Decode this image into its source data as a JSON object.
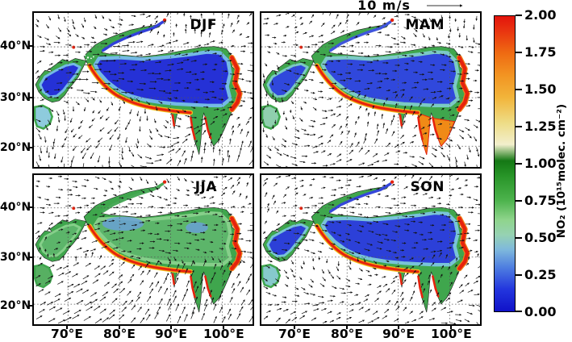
{
  "figure": {
    "wind_reference_label": "10 m/s",
    "panels": [
      {
        "season": "DJF"
      },
      {
        "season": "MAM"
      },
      {
        "season": "JJA"
      },
      {
        "season": "SON"
      }
    ],
    "axes": {
      "lat_ticks": [
        "40°N",
        "30°N",
        "20°N"
      ],
      "lon_ticks": [
        "70°E",
        "80°E",
        "90°E",
        "100°E"
      ]
    },
    "colorbar": {
      "title": "NO₂ (10¹⁵molec. cm⁻²)",
      "ticks": [
        "2.00",
        "1.75",
        "1.50",
        "1.25",
        "1.00",
        "0.75",
        "0.50",
        "0.25",
        "0.00"
      ]
    }
  },
  "chart_data": {
    "type": "heatmap",
    "title": "Seasonal tropospheric NO₂ column over the Tibetan Plateau region with wind vector overlay",
    "panel_grid": "2x2, seasons DJF (top-left), MAM (top-right), JJA (bottom-left), SON (bottom-right)",
    "x_axis": {
      "ticks": [
        "70°E",
        "80°E",
        "90°E",
        "100°E"
      ],
      "range_deg_east": [
        63.3,
        105.8
      ]
    },
    "y_axis": {
      "ticks": [
        "40°N",
        "30°N",
        "20°N"
      ],
      "range_deg_north": [
        16.9,
        46.9
      ]
    },
    "grid": "dotted graticule at 10-degree intervals",
    "wind_overlay": {
      "style": "black arrows",
      "reference_speed": "10 m/s"
    },
    "panels": [
      {
        "season": "DJF",
        "pattern": "Plateau interior deep blue (~0.1-0.3), narrow green fringe, intense red band (>=2.0) along Himalayan southern rim, red hotspots on eastern margin; western lobe blue with green edge; strong westerly arrows over plateau"
      },
      {
        "season": "MAM",
        "pattern": "Interior blue (~0.2-0.4) with broad green fringe (~0.6-1.0); southeastern ranges (Myanmar/Shan) orange-red (~1.5-2.0); red Himalayan rim and eastern hotspots"
      },
      {
        "season": "JJA",
        "pattern": "Plateau mostly green (~0.6-1.0) with small blue patches (~0.3-0.5); red rim persists along southern and eastern edges; long southwest-monsoon arrows in the southern part of the domain"
      },
      {
        "season": "SON",
        "pattern": "Interior blue (~0.2-0.4) with green fringe; red southern rim and eastern-margin hotspots similar to DJF"
      }
    ],
    "colorbar": {
      "label": "NO₂ (10¹⁵molec. cm⁻²)",
      "min": 0.0,
      "max": 2.0,
      "tick_interval": 0.25,
      "stops": [
        {
          "value": 0.0,
          "color": "#1012c8"
        },
        {
          "value": 0.3,
          "color": "#2336de"
        },
        {
          "value": 0.6,
          "color": "#4f7fe0"
        },
        {
          "value": 0.84,
          "color": "#7fb9dc"
        },
        {
          "value": 1.04,
          "color": "#96d2b2"
        },
        {
          "value": 1.24,
          "color": "#8fd48c"
        },
        {
          "value": 1.5,
          "color": "#4db34d"
        },
        {
          "value": 1.84,
          "color": "#279427"
        },
        {
          "value": 2.04,
          "color": "#157815"
        },
        {
          "value": 2.26,
          "color": "#f2efcd"
        },
        {
          "value": 2.56,
          "color": "#eedc85"
        },
        {
          "value": 2.9,
          "color": "#f2b43a"
        },
        {
          "value": 3.2,
          "color": "#f29422"
        },
        {
          "value": 3.5,
          "color": "#ef6a12"
        },
        {
          "value": 3.8,
          "color": "#e93410"
        },
        {
          "value": 4.0,
          "color": "#e3140c"
        }
      ],
      "stops_note": "stop.value is on a 0-4 half-scale of colorbar length; divide by 2 for NO2 value: 0.0 blue -> 0.5 light blue -> 0.75 light green -> 1.0 dark green -> 1.15 cream -> 1.3 pale yellow -> 1.6 orange -> 2.0 red"
    }
  }
}
